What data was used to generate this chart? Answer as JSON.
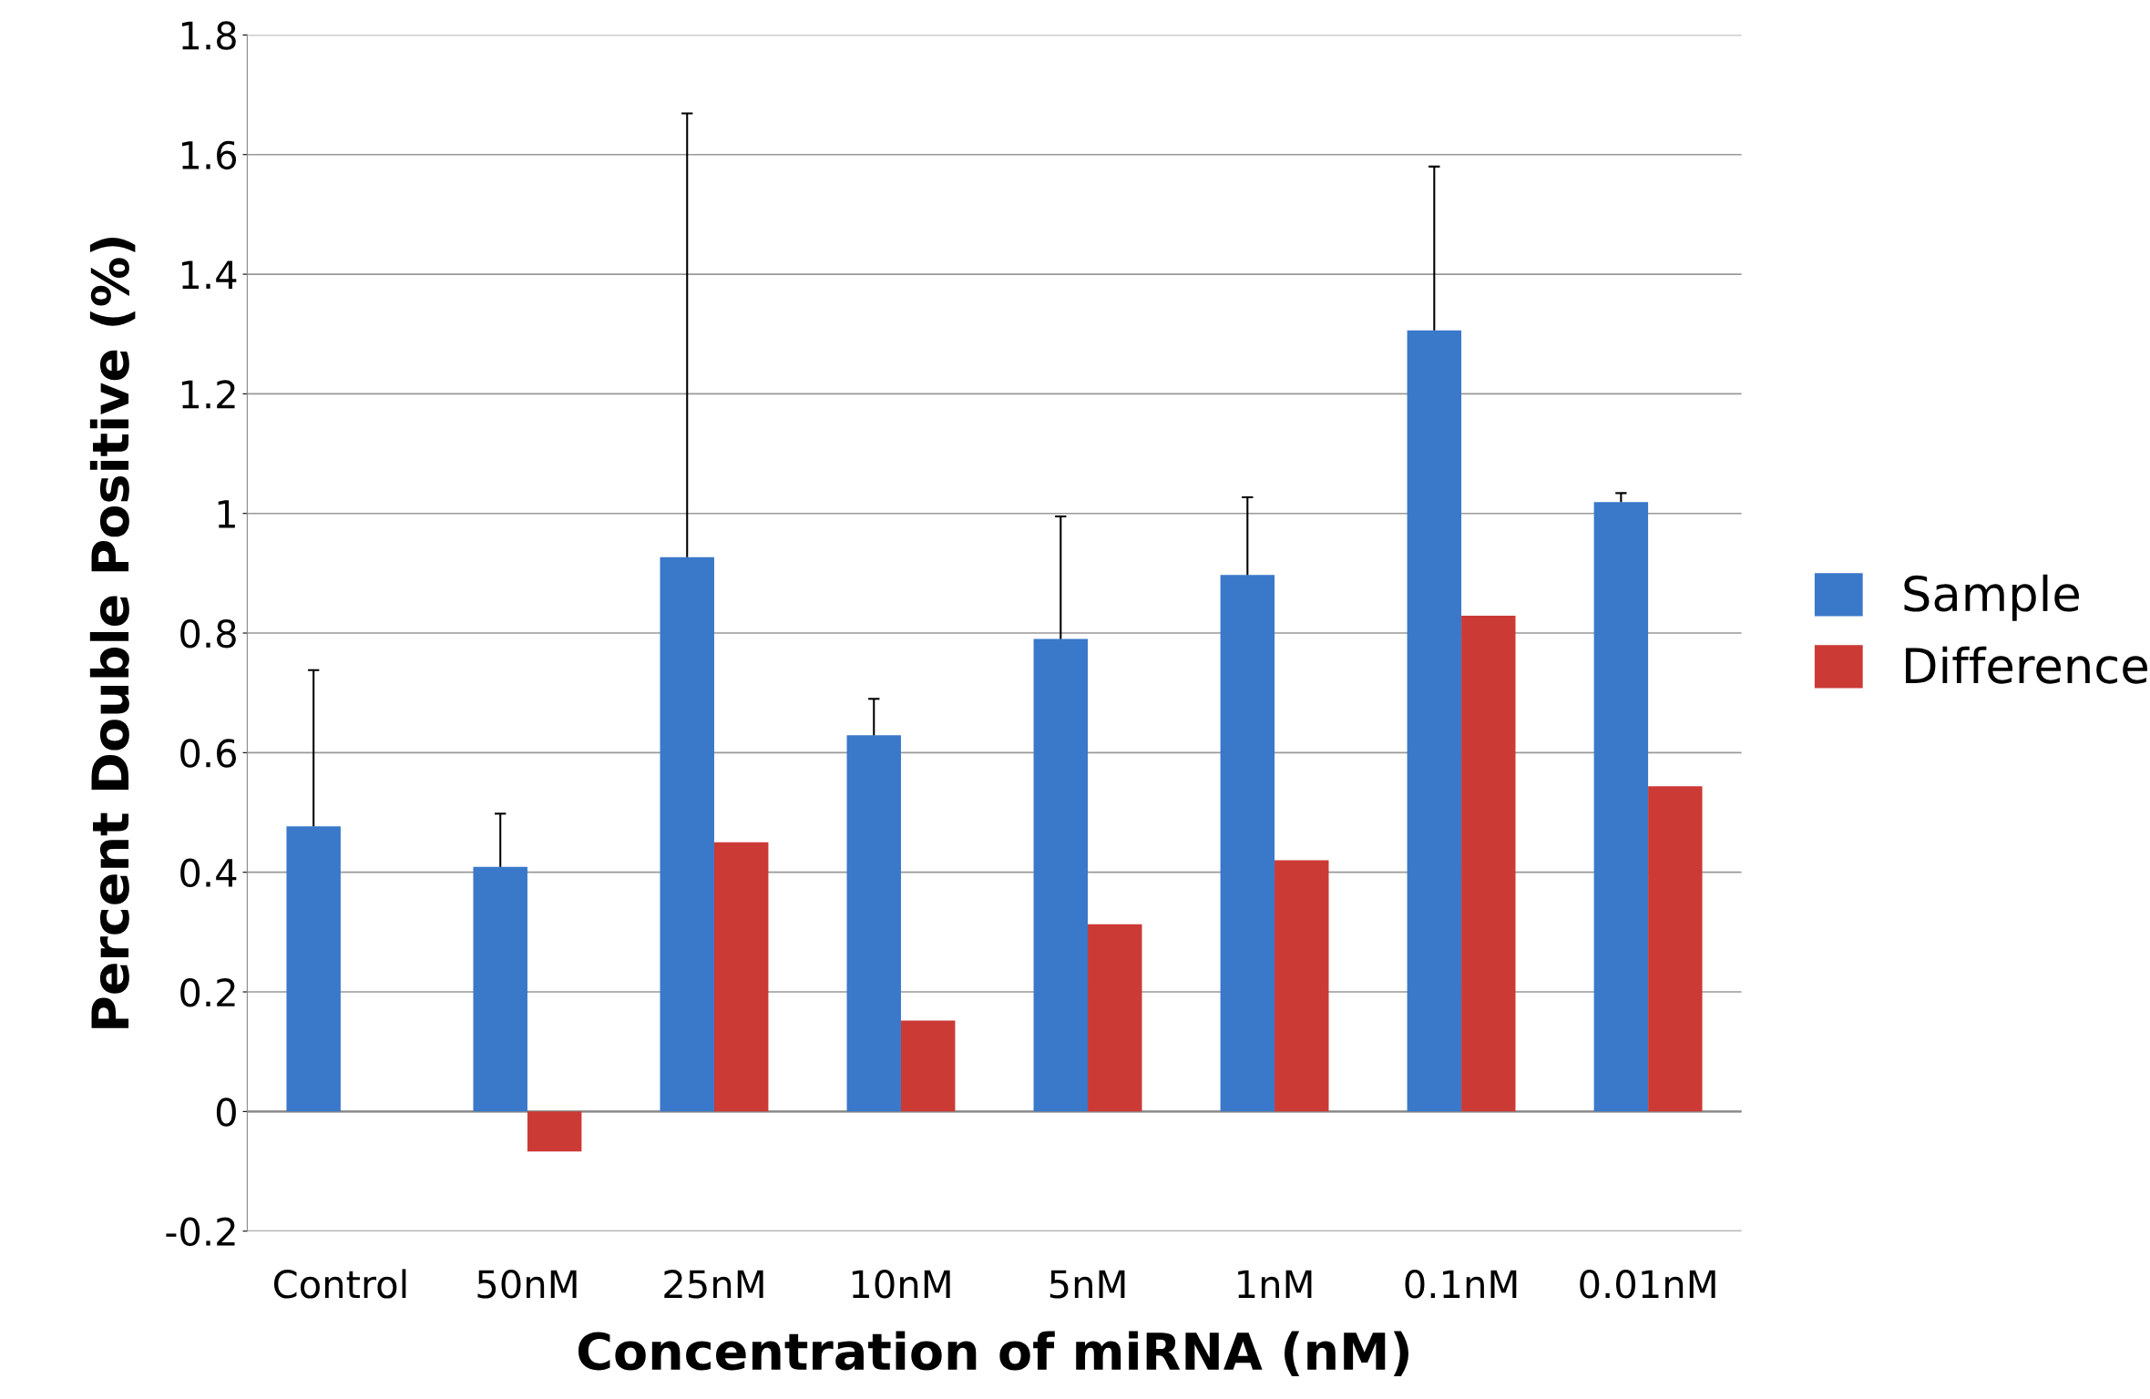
{
  "chart_data": {
    "type": "bar",
    "xlabel": "Concentration of miRNA (nM)",
    "ylabel": "Percent Double Positive (%)",
    "categories": [
      "Control",
      "50nM",
      "25nM",
      "10nM",
      "5nM",
      "1nM",
      "0.1nM",
      "0.01nM"
    ],
    "series": [
      {
        "name": "Sample",
        "color": "#3a78c9",
        "values": [
          0.477,
          0.409,
          0.927,
          0.629,
          0.79,
          0.897,
          1.306,
          1.019
        ],
        "errors": [
          [
            0.477,
            0.738
          ],
          [
            0.409,
            0.498
          ],
          [
            0.927,
            1.669
          ],
          [
            0.629,
            0.69
          ],
          [
            0.79,
            0.995
          ],
          [
            0.897,
            1.027
          ],
          [
            1.306,
            1.58
          ],
          [
            1.019,
            1.034
          ]
        ]
      },
      {
        "name": "Difference",
        "color": "#cc3a36",
        "values": [
          null,
          -0.067,
          0.45,
          0.152,
          0.313,
          0.42,
          0.829,
          0.544
        ]
      }
    ],
    "ylim": [
      -0.2,
      1.8
    ],
    "yticks": [
      {
        "value": -0.2,
        "label": "-0.2"
      },
      0,
      0.2,
      0.4,
      0.6,
      0.8,
      1,
      1.2,
      1.4,
      1.6,
      1.8
    ],
    "grid": "y",
    "legend": "right"
  }
}
